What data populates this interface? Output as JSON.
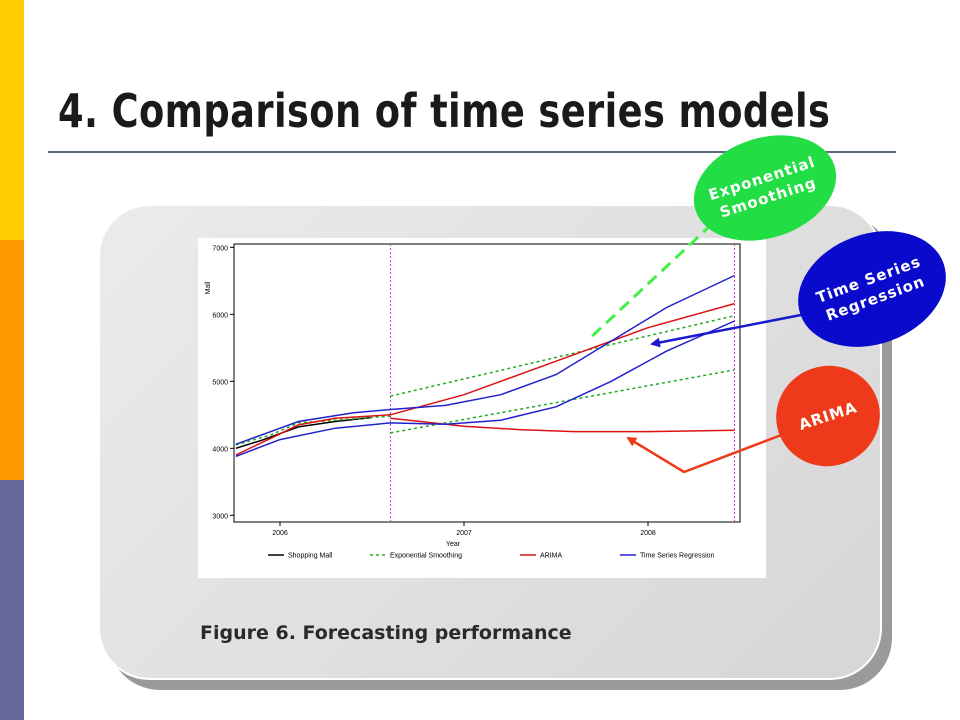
{
  "slide": {
    "title": "4. Comparison of time series models",
    "caption": "Figure 6. Forecasting performance",
    "sidebar_colors": [
      "#ffcc00",
      "#ff9900",
      "#666699"
    ]
  },
  "callouts": {
    "exponential_smoothing": {
      "line1": "Exponential",
      "line2": "Smoothing",
      "color": "#22dd44"
    },
    "time_series_regression": {
      "line1": "Time Series",
      "line2": "Regression",
      "color": "#0a0acc"
    },
    "arima": {
      "label": "ARIMA",
      "color": "#ee3a1a"
    }
  },
  "chart_data": {
    "type": "line",
    "xlabel": "Year",
    "ylabel": "Mall",
    "xlim": [
      2005.75,
      2008.5
    ],
    "ylim": [
      2900,
      7050
    ],
    "x_ticks": [
      {
        "value": 2006,
        "label": "2006"
      },
      {
        "value": 2007,
        "label": "2007"
      },
      {
        "value": 2008,
        "label": "2008"
      }
    ],
    "y_ticks": [
      {
        "value": 3000,
        "label": "3000"
      },
      {
        "value": 4000,
        "label": "4000"
      },
      {
        "value": 5000,
        "label": "5000"
      },
      {
        "value": 6000,
        "label": "6000"
      },
      {
        "value": 7000,
        "label": "7000"
      }
    ],
    "vlines": [
      2006.6,
      2008.47
    ],
    "grid": false,
    "legend_position": "bottom",
    "series": [
      {
        "name": "Shopping Mall",
        "color": "#000000",
        "dash": false,
        "lines": [
          [
            [
              2005.76,
              4000
            ],
            [
              2005.9,
              4120
            ],
            [
              2006.1,
              4320
            ],
            [
              2006.3,
              4400
            ],
            [
              2006.5,
              4460
            ]
          ]
        ]
      },
      {
        "name": "Exponential Smoothing",
        "color": "#22aa22",
        "dash": true,
        "lines": [
          [
            [
              2005.76,
              4050
            ],
            [
              2005.95,
              4200
            ],
            [
              2006.1,
              4380
            ],
            [
              2006.3,
              4420
            ],
            [
              2006.6,
              4480
            ]
          ],
          [
            [
              2006.6,
              4780
            ],
            [
              2008.47,
              5980
            ]
          ],
          [
            [
              2006.6,
              4230
            ],
            [
              2008.47,
              5170
            ]
          ]
        ]
      },
      {
        "name": "ARIMA",
        "color": "#dd1111",
        "dash": false,
        "lines": [
          [
            [
              2005.76,
              3900
            ],
            [
              2005.95,
              4150
            ],
            [
              2006.1,
              4350
            ],
            [
              2006.3,
              4450
            ],
            [
              2006.6,
              4500
            ],
            [
              2007.0,
              4800
            ],
            [
              2007.5,
              5300
            ],
            [
              2008.0,
              5800
            ],
            [
              2008.47,
              6160
            ]
          ],
          [
            [
              2006.6,
              4450
            ],
            [
              2007.0,
              4330
            ],
            [
              2007.3,
              4280
            ],
            [
              2007.6,
              4250
            ],
            [
              2008.0,
              4250
            ],
            [
              2008.47,
              4270
            ]
          ]
        ]
      },
      {
        "name": "Time Series Regression",
        "color": "#2222cc",
        "dash": false,
        "lines": [
          [
            [
              2005.76,
              4060
            ],
            [
              2005.95,
              4250
            ],
            [
              2006.1,
              4400
            ],
            [
              2006.4,
              4530
            ],
            [
              2006.6,
              4580
            ],
            [
              2006.9,
              4640
            ],
            [
              2007.2,
              4800
            ],
            [
              2007.5,
              5100
            ],
            [
              2007.8,
              5600
            ],
            [
              2008.1,
              6100
            ],
            [
              2008.47,
              6580
            ]
          ],
          [
            [
              2005.76,
              3880
            ],
            [
              2006.0,
              4130
            ],
            [
              2006.3,
              4300
            ],
            [
              2006.6,
              4380
            ],
            [
              2006.9,
              4360
            ],
            [
              2007.2,
              4420
            ],
            [
              2007.5,
              4620
            ],
            [
              2007.8,
              5000
            ],
            [
              2008.1,
              5450
            ],
            [
              2008.47,
              5900
            ]
          ]
        ]
      }
    ]
  }
}
